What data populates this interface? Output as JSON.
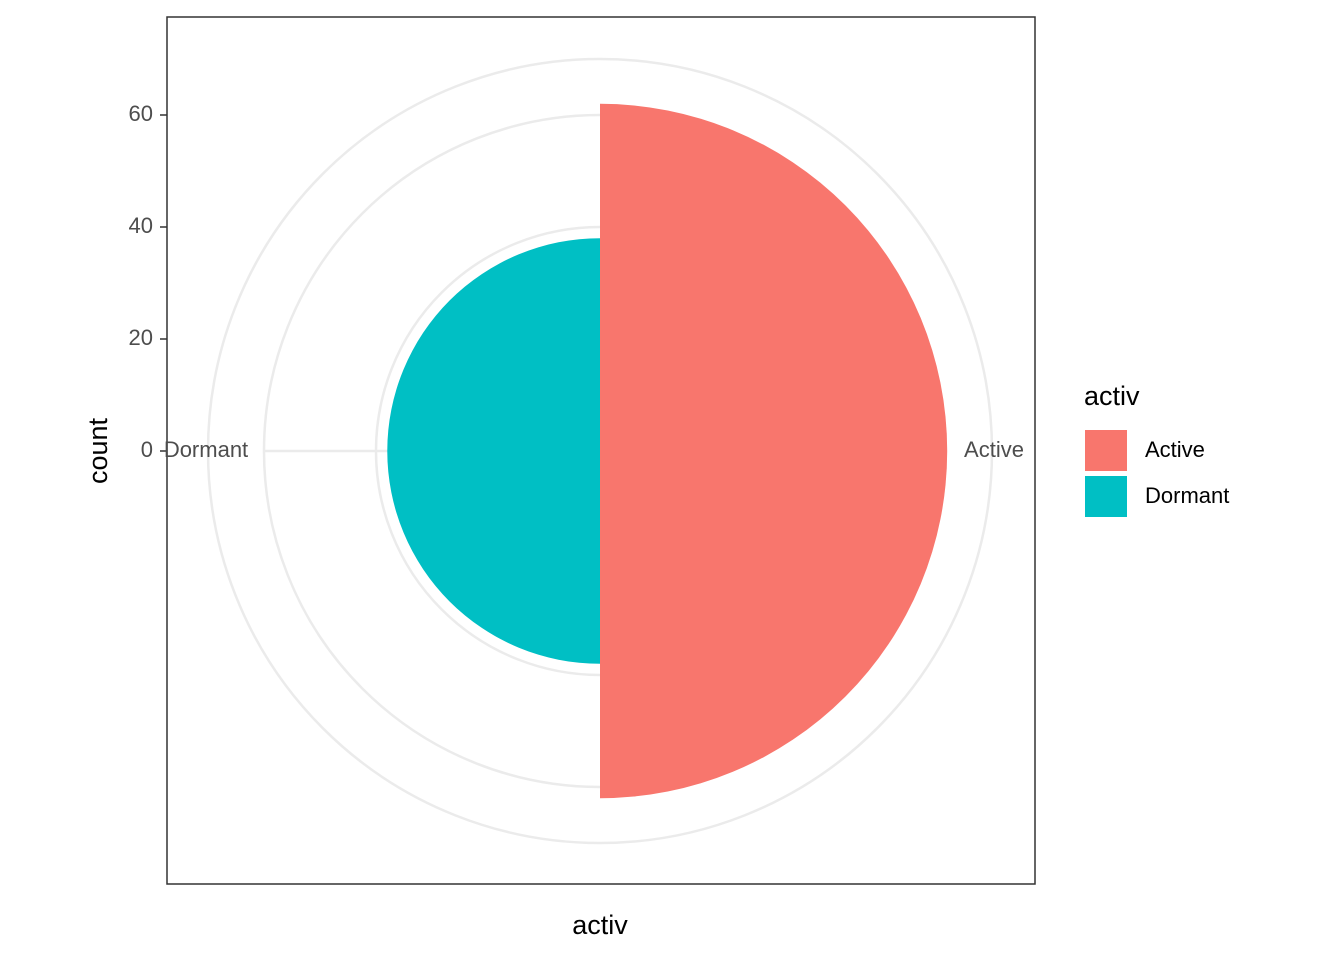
{
  "chart_data": {
    "type": "polar-bar",
    "x_label": "activ",
    "y_label": "count",
    "legend_title": "activ",
    "categories": [
      "Active",
      "Dormant"
    ],
    "values": [
      62,
      38
    ],
    "colors": [
      "#f8766d",
      "#00bfc4"
    ],
    "ylim": [
      0,
      70
    ],
    "yticks": [
      0,
      20,
      40,
      60
    ],
    "grid": true
  }
}
